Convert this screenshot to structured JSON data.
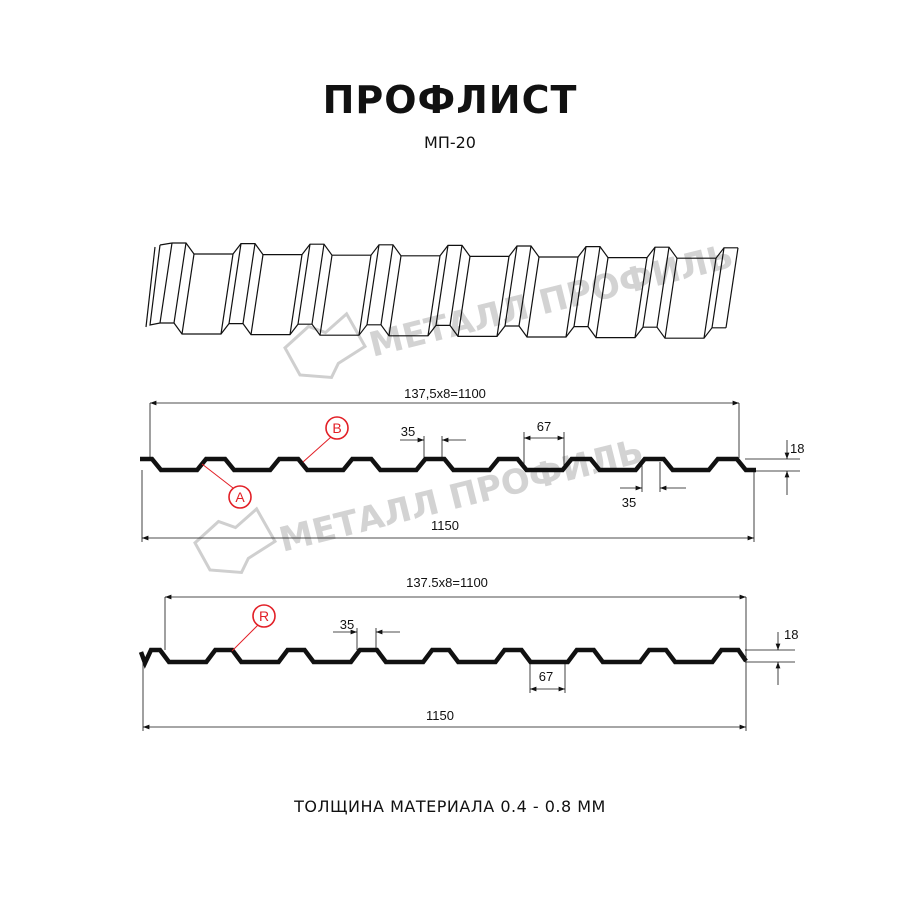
{
  "header": {
    "title": "ПРОФЛИСТ",
    "subtitle": "МП-20"
  },
  "watermark": {
    "text": "МЕТАЛЛ ПРОФИЛЬ",
    "color": "#c9c9c9"
  },
  "profile_a": {
    "pitch_dim": "137,5x8=1100",
    "total_dim": "1150",
    "crest_dim": "35",
    "valley_dim": "67",
    "bottom_crest_dim": "35",
    "height_dim": "18",
    "labels": [
      "B",
      "A"
    ]
  },
  "profile_b": {
    "pitch_dim": "137.5x8=1100",
    "total_dim": "1150",
    "crest_dim": "35",
    "valley_dim": "67",
    "height_dim": "18",
    "labels": [
      "R"
    ]
  },
  "footer": {
    "text": "ТОЛЩИНА МАТЕРИАЛА 0.4 - 0.8 ММ"
  },
  "colors": {
    "line": "#111111",
    "label": "#e21f26"
  }
}
